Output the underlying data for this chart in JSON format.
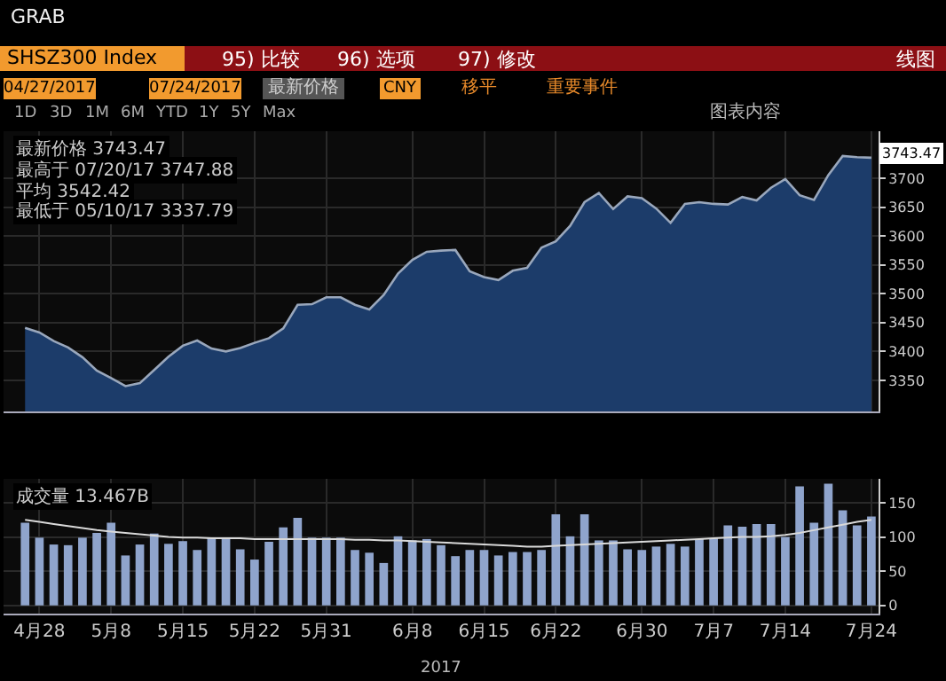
{
  "chart_data": [
    {
      "type": "area",
      "title": "SHSZ300 Index",
      "categories": [
        null,
        null,
        null,
        null,
        null,
        null,
        null,
        null,
        null,
        null,
        null,
        null,
        null,
        null,
        null,
        null,
        null,
        null,
        null,
        null,
        null,
        null,
        null,
        null,
        null,
        null,
        null,
        null,
        null,
        null,
        null,
        null,
        null,
        null,
        null,
        null,
        null,
        null,
        null,
        null,
        null,
        null,
        null,
        null,
        null,
        null,
        null,
        null,
        null,
        null,
        null,
        null,
        null,
        null,
        null,
        null,
        null,
        null,
        null,
        null
      ],
      "values": [
        3441,
        3433,
        3418,
        3407,
        3390,
        3367,
        3354,
        3340,
        3345,
        3368,
        3391,
        3410,
        3419,
        3405,
        3400,
        3406,
        3415,
        3423,
        3440,
        3481,
        3482,
        3494,
        3494,
        3481,
        3473,
        3498,
        3535,
        3559,
        3573,
        3575,
        3576,
        3539,
        3529,
        3524,
        3540,
        3545,
        3580,
        3591,
        3618,
        3659,
        3675,
        3647,
        3669,
        3666,
        3648,
        3623,
        3656,
        3659,
        3656,
        3655,
        3668,
        3662,
        3684,
        3699,
        3671,
        3663,
        3706,
        3739,
        3737,
        3736
      ],
      "color": "#1c3c6a",
      "ylim": [
        3296,
        3782
      ],
      "yticks": [
        3350,
        3400,
        3450,
        3500,
        3550,
        3600,
        3650,
        3700
      ],
      "grid": true,
      "annotations": [
        "GRAB",
        "95) 比较",
        "96) 选项",
        "97) 修改",
        "线图",
        "04/27/2017",
        "07/24/2017",
        "最新价格",
        "CNY",
        "移平",
        "重要事件",
        "1D",
        "3D",
        "1M",
        "6M",
        "YTD",
        "1Y",
        "5Y",
        "Max",
        "图表内容",
        "最新价格 3743.47",
        "最高于 07/20/17 3747.88",
        "平均 3542.42",
        "最低于 05/10/17 3337.79",
        {
          "text": "3743.47",
          "y": 3743.47
        }
      ]
    },
    {
      "type": "bar",
      "categories": [
        null,
        "4月28",
        null,
        null,
        null,
        null,
        "5月8",
        null,
        null,
        null,
        null,
        "5月15",
        null,
        null,
        null,
        null,
        "5月22",
        null,
        null,
        null,
        null,
        "5月31",
        null,
        null,
        null,
        null,
        null,
        "6月8",
        null,
        null,
        null,
        null,
        "6月15",
        null,
        null,
        null,
        null,
        "6月22",
        null,
        null,
        null,
        null,
        null,
        "6月30",
        null,
        null,
        null,
        null,
        "7月7",
        null,
        null,
        null,
        null,
        "7月14",
        null,
        null,
        null,
        null,
        null,
        "7月24"
      ],
      "series": [
        {
          "color": "#8fa4cc",
          "values": [
            121,
            99,
            89,
            88,
            99,
            106,
            121,
            73,
            89,
            105,
            90,
            94,
            81,
            99,
            97,
            82,
            67,
            93,
            114,
            128,
            99,
            99,
            99,
            81,
            77,
            62,
            101,
            95,
            97,
            88,
            72,
            81,
            81,
            73,
            78,
            78,
            81,
            133,
            101,
            133,
            95,
            95,
            82,
            81,
            86,
            90,
            86,
            97,
            98,
            117,
            115,
            119,
            119,
            100,
            174,
            121,
            178,
            139,
            117,
            130
          ]
        },
        {
          "type": "line",
          "color": "#d9d9d9",
          "values": [
            125,
            122,
            119,
            116,
            113,
            110,
            108,
            106,
            104,
            102,
            100,
            99,
            99,
            98,
            98,
            98,
            97,
            97,
            97,
            97,
            97,
            97,
            97,
            96,
            96,
            95,
            95,
            94,
            93,
            92,
            91,
            90,
            89,
            88,
            87,
            86,
            86,
            87,
            88,
            89,
            90,
            91,
            92,
            93,
            94,
            95,
            96,
            97,
            98,
            99,
            100,
            100,
            101,
            103,
            106,
            110,
            114,
            118,
            122,
            125
          ]
        }
      ],
      "ylim": [
        -12,
        185
      ],
      "yticks": [
        0,
        50,
        100,
        150
      ],
      "grid": true,
      "annotations": [
        "成交量 13.467B",
        "2017"
      ]
    }
  ]
}
